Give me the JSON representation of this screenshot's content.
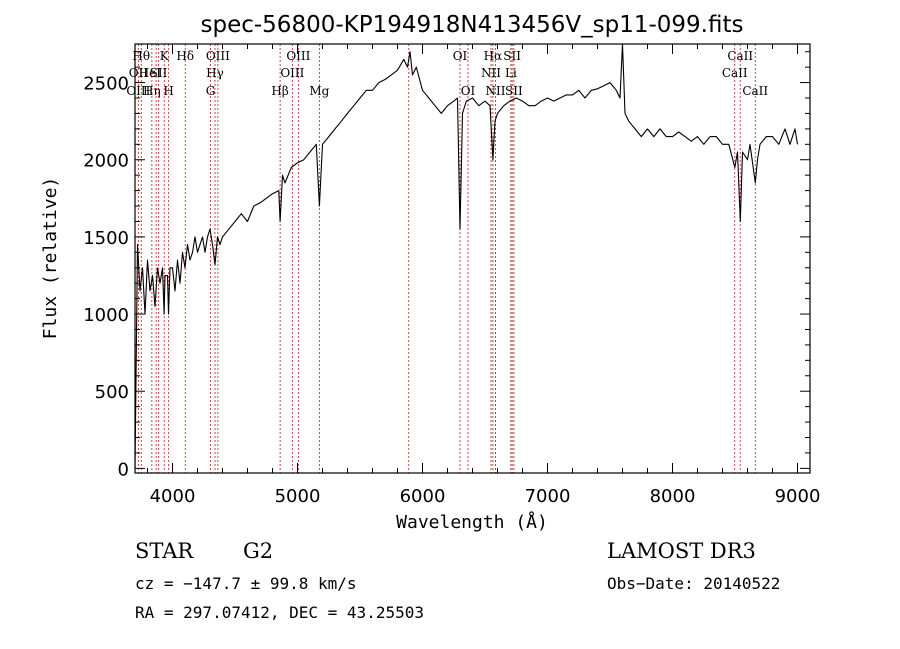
{
  "chart_data": {
    "type": "line",
    "title": "spec-56800-KP194918N413456V_sp11-099.fits",
    "xlabel": "Wavelength (Å)",
    "ylabel": "Flux (relative)",
    "xlim": [
      3700,
      9100
    ],
    "ylim": [
      -30,
      2750
    ],
    "xticks": [
      4000,
      5000,
      6000,
      7000,
      8000,
      9000
    ],
    "yticks": [
      0,
      500,
      1000,
      1500,
      2000,
      2500
    ],
    "grid": false,
    "series": [
      {
        "x": [
          3700,
          3720,
          3740,
          3760,
          3780,
          3800,
          3820,
          3840,
          3860,
          3880,
          3900,
          3920,
          3933,
          3940,
          3960,
          3968,
          3980,
          4000,
          4020,
          4040,
          4060,
          4080,
          4100,
          4120,
          4140,
          4160,
          4180,
          4200,
          4220,
          4240,
          4260,
          4280,
          4300,
          4320,
          4340,
          4360,
          4380,
          4400,
          4450,
          4500,
          4550,
          4600,
          4650,
          4700,
          4750,
          4800,
          4850,
          4861,
          4880,
          4900,
          4950,
          5000,
          5050,
          5100,
          5150,
          5175,
          5200,
          5250,
          5300,
          5350,
          5400,
          5450,
          5500,
          5550,
          5600,
          5650,
          5700,
          5750,
          5800,
          5850,
          5880,
          5900,
          5920,
          5950,
          6000,
          6050,
          6100,
          6150,
          6200,
          6250,
          6280,
          6300,
          6320,
          6350,
          6400,
          6450,
          6500,
          6540,
          6563,
          6580,
          6600,
          6650,
          6700,
          6750,
          6800,
          6850,
          6900,
          6950,
          7000,
          7050,
          7100,
          7150,
          7200,
          7250,
          7300,
          7350,
          7400,
          7450,
          7500,
          7550,
          7580,
          7600,
          7620,
          7650,
          7700,
          7750,
          7800,
          7850,
          7900,
          7950,
          8000,
          8050,
          8100,
          8150,
          8200,
          8250,
          8300,
          8350,
          8400,
          8450,
          8498,
          8520,
          8542,
          8560,
          8600,
          8620,
          8662,
          8680,
          8700,
          8750,
          8800,
          8850,
          8900,
          8940,
          8960,
          8980,
          9000
        ],
        "y": [
          0,
          1450,
          1150,
          1300,
          1000,
          1350,
          1150,
          1250,
          1050,
          1300,
          1200,
          1300,
          1000,
          1250,
          1250,
          1000,
          1300,
          1300,
          1150,
          1350,
          1200,
          1400,
          1300,
          1450,
          1350,
          1400,
          1500,
          1400,
          1450,
          1500,
          1400,
          1500,
          1550,
          1450,
          1320,
          1500,
          1450,
          1500,
          1550,
          1600,
          1650,
          1600,
          1700,
          1720,
          1750,
          1780,
          1800,
          1600,
          1900,
          1850,
          1950,
          1980,
          2000,
          2050,
          2100,
          1700,
          2100,
          2150,
          2200,
          2250,
          2300,
          2350,
          2400,
          2450,
          2450,
          2500,
          2520,
          2550,
          2580,
          2650,
          2600,
          2700,
          2550,
          2600,
          2450,
          2400,
          2350,
          2300,
          2350,
          2380,
          2400,
          1550,
          2300,
          2380,
          2400,
          2350,
          2380,
          2350,
          2000,
          2250,
          2300,
          2350,
          2380,
          2400,
          2380,
          2350,
          2350,
          2380,
          2400,
          2380,
          2400,
          2420,
          2420,
          2450,
          2400,
          2450,
          2460,
          2480,
          2500,
          2450,
          2400,
          2750,
          2300,
          2250,
          2200,
          2150,
          2200,
          2150,
          2200,
          2150,
          2150,
          2180,
          2150,
          2120,
          2150,
          2100,
          2150,
          2150,
          2100,
          2100,
          1950,
          2050,
          1600,
          2050,
          2000,
          2100,
          1850,
          2000,
          2100,
          2150,
          2150,
          2100,
          2200,
          2100,
          2150,
          2200,
          2100
        ]
      }
    ],
    "annotations": [
      {
        "x": 3750,
        "text": "Hθ"
      },
      {
        "x": 3727,
        "text": "OII"
      },
      {
        "x": 3727,
        "text": "OIII"
      },
      {
        "x": 3819,
        "text": "HeI"
      },
      {
        "x": 3835,
        "text": "Hη"
      },
      {
        "x": 3888,
        "text": "SII"
      },
      {
        "x": 3934,
        "text": "K"
      },
      {
        "x": 3969,
        "text": "H"
      },
      {
        "x": 4102,
        "text": "Hδ"
      },
      {
        "x": 4363,
        "text": "OIII"
      },
      {
        "x": 4340,
        "text": "Hγ"
      },
      {
        "x": 4304,
        "text": "G"
      },
      {
        "x": 4861,
        "text": "Hβ"
      },
      {
        "x": 5007,
        "text": "OIII"
      },
      {
        "x": 4959,
        "text": "OIII"
      },
      {
        "x": 5175,
        "text": "Mg"
      },
      {
        "x": 6300,
        "text": "OI"
      },
      {
        "x": 6364,
        "text": "OI"
      },
      {
        "x": 6563,
        "text": "Hα"
      },
      {
        "x": 6548,
        "text": "NII"
      },
      {
        "x": 6584,
        "text": "NII"
      },
      {
        "x": 6717,
        "text": "SII"
      },
      {
        "x": 6707,
        "text": "Li"
      },
      {
        "x": 6731,
        "text": "SII"
      },
      {
        "x": 8498,
        "text": "CaII"
      },
      {
        "x": 8542,
        "text": "CaII"
      },
      {
        "x": 8662,
        "text": "CaII"
      }
    ],
    "line_marks": [
      3727,
      3750,
      3835,
      3869,
      3889,
      3934,
      3969,
      4102,
      4304,
      4340,
      4363,
      4861,
      4959,
      5007,
      5175,
      5890,
      6300,
      6364,
      6548,
      6563,
      6584,
      6707,
      6717,
      6731,
      8498,
      8542,
      8662
    ]
  },
  "info": {
    "object_class": "STAR",
    "subclass": "G2",
    "survey": "LAMOST DR3",
    "cz": "cz = −147.7 ± 99.8 km/s",
    "obs_date": "Obs−Date: 20140522",
    "coords": "RA = 297.07412, DEC =  43.25503"
  }
}
